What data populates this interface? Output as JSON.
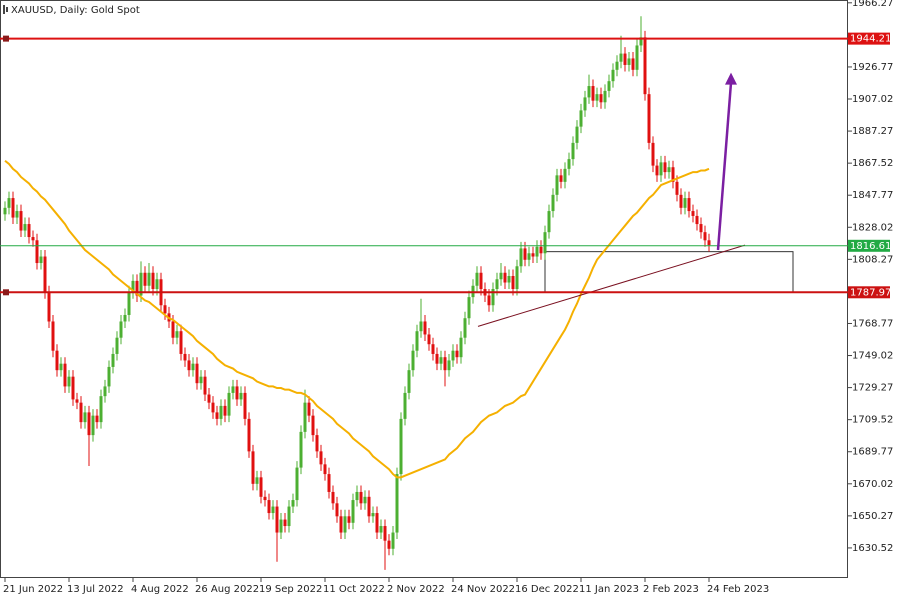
{
  "chart_data": {
    "type": "candlestick",
    "title": "XAUUSD, Daily:  Gold Spot",
    "categories": [
      "21 Jun 2022",
      null,
      null,
      null,
      null,
      null,
      null,
      null,
      null,
      null,
      null,
      null,
      null,
      null,
      null,
      null,
      "13 Jul 2022",
      null,
      null,
      null,
      null,
      null,
      null,
      null,
      null,
      null,
      null,
      null,
      null,
      null,
      null,
      null,
      "4 Aug 2022",
      null,
      null,
      null,
      null,
      null,
      null,
      null,
      null,
      null,
      null,
      null,
      null,
      null,
      null,
      null,
      "26 Aug 2022",
      null,
      null,
      null,
      null,
      null,
      null,
      null,
      null,
      null,
      null,
      null,
      null,
      null,
      null,
      null,
      "19 Sep 2022",
      null,
      null,
      null,
      null,
      null,
      null,
      null,
      null,
      null,
      null,
      null,
      null,
      null,
      null,
      null,
      "11 Oct 2022",
      null,
      null,
      null,
      null,
      null,
      null,
      null,
      null,
      null,
      null,
      null,
      null,
      null,
      null,
      null,
      "2 Nov 2022",
      null,
      null,
      null,
      null,
      null,
      null,
      null,
      null,
      null,
      null,
      null,
      null,
      null,
      null,
      null,
      "24 Nov 2022",
      null,
      null,
      null,
      null,
      null,
      null,
      null,
      null,
      null,
      null,
      null,
      null,
      null,
      null,
      null,
      "16 Dec 2022",
      null,
      null,
      null,
      null,
      null,
      null,
      null,
      null,
      null,
      null,
      null,
      null,
      null,
      null,
      null,
      "11 Jan 2023",
      null,
      null,
      null,
      null,
      null,
      null,
      null,
      null,
      null,
      null,
      null,
      null,
      null,
      null,
      null,
      "2 Feb 2023",
      null,
      null,
      null,
      null,
      null,
      null,
      null,
      null,
      null,
      null,
      null,
      null,
      null,
      null,
      null,
      "24 Feb 2023"
    ],
    "ohlc": [
      [
        1836,
        1844,
        1832,
        1840
      ],
      [
        1840,
        1850,
        1836,
        1846
      ],
      [
        1846,
        1850,
        1830,
        1834
      ],
      [
        1834,
        1842,
        1830,
        1838
      ],
      [
        1838,
        1842,
        1822,
        1826
      ],
      [
        1826,
        1834,
        1822,
        1830
      ],
      [
        1830,
        1834,
        1818,
        1822
      ],
      [
        1822,
        1826,
        1816,
        1820
      ],
      [
        1820,
        1824,
        1802,
        1806
      ],
      [
        1806,
        1814,
        1802,
        1810
      ],
      [
        1810,
        1814,
        1784,
        1788
      ],
      [
        1788,
        1792,
        1766,
        1770
      ],
      [
        1770,
        1774,
        1748,
        1752
      ],
      [
        1752,
        1756,
        1736,
        1740
      ],
      [
        1740,
        1748,
        1736,
        1744
      ],
      [
        1744,
        1748,
        1726,
        1730
      ],
      [
        1730,
        1740,
        1726,
        1736
      ],
      [
        1736,
        1740,
        1718,
        1722
      ],
      [
        1722,
        1726,
        1716,
        1720
      ],
      [
        1720,
        1724,
        1704,
        1708
      ],
      [
        1708,
        1718,
        1704,
        1714
      ],
      [
        1714,
        1718,
        1681,
        1700
      ],
      [
        1700,
        1716,
        1696,
        1712
      ],
      [
        1712,
        1716,
        1704,
        1708
      ],
      [
        1708,
        1728,
        1704,
        1724
      ],
      [
        1724,
        1734,
        1720,
        1730
      ],
      [
        1730,
        1746,
        1726,
        1742
      ],
      [
        1742,
        1754,
        1738,
        1750
      ],
      [
        1750,
        1764,
        1746,
        1760
      ],
      [
        1760,
        1774,
        1756,
        1770
      ],
      [
        1770,
        1778,
        1766,
        1774
      ],
      [
        1774,
        1792,
        1770,
        1788
      ],
      [
        1788,
        1799,
        1784,
        1795
      ],
      [
        1795,
        1799,
        1782,
        1786
      ],
      [
        1786,
        1807,
        1782,
        1800
      ],
      [
        1800,
        1804,
        1788,
        1792
      ],
      [
        1792,
        1806,
        1788,
        1800
      ],
      [
        1800,
        1804,
        1786,
        1790
      ],
      [
        1790,
        1800,
        1786,
        1796
      ],
      [
        1796,
        1800,
        1776,
        1780
      ],
      [
        1780,
        1784,
        1771,
        1775
      ],
      [
        1775,
        1779,
        1766,
        1770
      ],
      [
        1770,
        1774,
        1756,
        1760
      ],
      [
        1760,
        1768,
        1756,
        1764
      ],
      [
        1764,
        1768,
        1746,
        1750
      ],
      [
        1750,
        1754,
        1742,
        1746
      ],
      [
        1746,
        1750,
        1736,
        1740
      ],
      [
        1740,
        1748,
        1736,
        1744
      ],
      [
        1744,
        1748,
        1728,
        1732
      ],
      [
        1732,
        1740,
        1728,
        1736
      ],
      [
        1736,
        1740,
        1721,
        1725
      ],
      [
        1725,
        1729,
        1716,
        1720
      ],
      [
        1720,
        1724,
        1710,
        1714
      ],
      [
        1714,
        1718,
        1706,
        1710
      ],
      [
        1710,
        1722,
        1706,
        1718
      ],
      [
        1718,
        1722,
        1708,
        1712
      ],
      [
        1712,
        1730,
        1708,
        1726
      ],
      [
        1726,
        1734,
        1722,
        1730
      ],
      [
        1730,
        1734,
        1718,
        1722
      ],
      [
        1722,
        1730,
        1718,
        1726
      ],
      [
        1726,
        1730,
        1706,
        1710
      ],
      [
        1710,
        1714,
        1686,
        1690
      ],
      [
        1690,
        1694,
        1666,
        1670
      ],
      [
        1670,
        1678,
        1666,
        1674
      ],
      [
        1674,
        1678,
        1658,
        1662
      ],
      [
        1662,
        1666,
        1656,
        1660
      ],
      [
        1660,
        1664,
        1648,
        1652
      ],
      [
        1652,
        1660,
        1648,
        1656
      ],
      [
        1656,
        1660,
        1622,
        1640
      ],
      [
        1640,
        1652,
        1636,
        1648
      ],
      [
        1648,
        1652,
        1640,
        1644
      ],
      [
        1644,
        1660,
        1640,
        1656
      ],
      [
        1656,
        1664,
        1652,
        1660
      ],
      [
        1660,
        1684,
        1656,
        1680
      ],
      [
        1680,
        1706,
        1676,
        1702
      ],
      [
        1702,
        1728,
        1698,
        1720
      ],
      [
        1720,
        1724,
        1708,
        1712
      ],
      [
        1712,
        1716,
        1696,
        1700
      ],
      [
        1700,
        1704,
        1686,
        1690
      ],
      [
        1690,
        1694,
        1678,
        1682
      ],
      [
        1682,
        1686,
        1672,
        1676
      ],
      [
        1676,
        1680,
        1661,
        1665
      ],
      [
        1665,
        1669,
        1654,
        1658
      ],
      [
        1658,
        1662,
        1646,
        1650
      ],
      [
        1650,
        1654,
        1636,
        1640
      ],
      [
        1640,
        1654,
        1636,
        1650
      ],
      [
        1650,
        1654,
        1642,
        1646
      ],
      [
        1646,
        1664,
        1642,
        1660
      ],
      [
        1660,
        1669,
        1656,
        1665
      ],
      [
        1665,
        1669,
        1654,
        1658
      ],
      [
        1658,
        1666,
        1654,
        1662
      ],
      [
        1662,
        1666,
        1646,
        1650
      ],
      [
        1650,
        1656,
        1646,
        1652
      ],
      [
        1652,
        1656,
        1636,
        1640
      ],
      [
        1640,
        1648,
        1636,
        1644
      ],
      [
        1644,
        1648,
        1617,
        1635
      ],
      [
        1635,
        1639,
        1626,
        1630
      ],
      [
        1630,
        1644,
        1626,
        1640
      ],
      [
        1640,
        1680,
        1636,
        1676
      ],
      [
        1676,
        1714,
        1672,
        1710
      ],
      [
        1710,
        1730,
        1706,
        1726
      ],
      [
        1726,
        1744,
        1722,
        1740
      ],
      [
        1740,
        1756,
        1736,
        1752
      ],
      [
        1752,
        1768,
        1748,
        1764
      ],
      [
        1764,
        1784,
        1760,
        1770
      ],
      [
        1770,
        1774,
        1758,
        1762
      ],
      [
        1762,
        1766,
        1752,
        1756
      ],
      [
        1756,
        1760,
        1746,
        1750
      ],
      [
        1750,
        1754,
        1740,
        1744
      ],
      [
        1744,
        1752,
        1740,
        1748
      ],
      [
        1748,
        1752,
        1730,
        1740
      ],
      [
        1740,
        1750,
        1736,
        1746
      ],
      [
        1746,
        1756,
        1742,
        1752
      ],
      [
        1752,
        1756,
        1744,
        1748
      ],
      [
        1748,
        1764,
        1744,
        1760
      ],
      [
        1760,
        1776,
        1756,
        1772
      ],
      [
        1772,
        1789,
        1768,
        1785
      ],
      [
        1785,
        1796,
        1781,
        1792
      ],
      [
        1792,
        1804,
        1788,
        1800
      ],
      [
        1800,
        1804,
        1786,
        1790
      ],
      [
        1790,
        1794,
        1782,
        1786
      ],
      [
        1786,
        1790,
        1776,
        1780
      ],
      [
        1780,
        1794,
        1776,
        1790
      ],
      [
        1790,
        1800,
        1786,
        1796
      ],
      [
        1796,
        1806,
        1792,
        1800
      ],
      [
        1800,
        1804,
        1790,
        1794
      ],
      [
        1794,
        1802,
        1790,
        1798
      ],
      [
        1798,
        1802,
        1786,
        1790
      ],
      [
        1790,
        1808,
        1786,
        1804
      ],
      [
        1804,
        1819,
        1800,
        1815
      ],
      [
        1815,
        1819,
        1804,
        1808
      ],
      [
        1808,
        1816,
        1804,
        1812
      ],
      [
        1812,
        1816,
        1806,
        1810
      ],
      [
        1810,
        1820,
        1806,
        1816
      ],
      [
        1816,
        1820,
        1808,
        1812
      ],
      [
        1812,
        1829,
        1808,
        1825
      ],
      [
        1825,
        1842,
        1821,
        1838
      ],
      [
        1838,
        1852,
        1834,
        1848
      ],
      [
        1848,
        1864,
        1844,
        1860
      ],
      [
        1860,
        1864,
        1852,
        1856
      ],
      [
        1856,
        1868,
        1852,
        1864
      ],
      [
        1864,
        1874,
        1860,
        1870
      ],
      [
        1870,
        1884,
        1866,
        1880
      ],
      [
        1880,
        1894,
        1876,
        1890
      ],
      [
        1890,
        1904,
        1886,
        1900
      ],
      [
        1900,
        1912,
        1896,
        1908
      ],
      [
        1908,
        1922,
        1904,
        1915
      ],
      [
        1915,
        1919,
        1902,
        1906
      ],
      [
        1906,
        1914,
        1902,
        1910
      ],
      [
        1910,
        1914,
        1901,
        1905
      ],
      [
        1905,
        1916,
        1901,
        1912
      ],
      [
        1912,
        1922,
        1908,
        1918
      ],
      [
        1918,
        1929,
        1914,
        1925
      ],
      [
        1925,
        1934,
        1921,
        1930
      ],
      [
        1930,
        1946,
        1926,
        1935
      ],
      [
        1935,
        1939,
        1924,
        1928
      ],
      [
        1928,
        1936,
        1924,
        1932
      ],
      [
        1932,
        1936,
        1921,
        1925
      ],
      [
        1925,
        1944,
        1921,
        1940
      ],
      [
        1940,
        1958,
        1936,
        1945
      ],
      [
        1945,
        1949,
        1906,
        1910
      ],
      [
        1910,
        1914,
        1876,
        1880
      ],
      [
        1880,
        1884,
        1862,
        1866
      ],
      [
        1866,
        1870,
        1856,
        1860
      ],
      [
        1860,
        1872,
        1856,
        1868
      ],
      [
        1868,
        1872,
        1858,
        1862
      ],
      [
        1862,
        1869,
        1858,
        1865
      ],
      [
        1865,
        1869,
        1852,
        1856
      ],
      [
        1856,
        1860,
        1844,
        1848
      ],
      [
        1848,
        1852,
        1836,
        1840
      ],
      [
        1840,
        1850,
        1836,
        1846
      ],
      [
        1846,
        1850,
        1834,
        1838
      ],
      [
        1838,
        1842,
        1831,
        1835
      ],
      [
        1835,
        1839,
        1826,
        1830
      ],
      [
        1830,
        1834,
        1821,
        1825
      ],
      [
        1825,
        1829,
        1816,
        1820
      ],
      [
        1820,
        1824,
        1813,
        1817
      ]
    ],
    "up_color": "#4caf32",
    "down_color": "#e01010",
    "ma": {
      "color": "#f5b000",
      "values": [
        1869,
        1867,
        1864,
        1862,
        1859,
        1857,
        1855,
        1852,
        1850,
        1847,
        1845,
        1842,
        1839,
        1836,
        1833,
        1830,
        1826,
        1823,
        1820,
        1817,
        1814,
        1812,
        1810,
        1808,
        1806,
        1804,
        1802,
        1799,
        1797,
        1795,
        1793,
        1791,
        1789,
        1787,
        1785,
        1783,
        1782,
        1780,
        1778,
        1776,
        1774,
        1772,
        1771,
        1769,
        1767,
        1765,
        1763,
        1761,
        1758,
        1756,
        1754,
        1752,
        1750,
        1747,
        1745,
        1743,
        1742,
        1741,
        1739,
        1738,
        1737,
        1736,
        1735,
        1733,
        1732,
        1731,
        1730,
        1730,
        1729,
        1729,
        1728,
        1728,
        1727,
        1726,
        1726,
        1725,
        1723,
        1721,
        1718,
        1716,
        1714,
        1712,
        1710,
        1707,
        1705,
        1703,
        1701,
        1698,
        1696,
        1694,
        1692,
        1690,
        1687,
        1685,
        1683,
        1681,
        1679,
        1676,
        1674,
        1674,
        1675,
        1676,
        1677,
        1678,
        1679,
        1680,
        1681,
        1682,
        1683,
        1684,
        1685,
        1688,
        1690,
        1692,
        1695,
        1698,
        1700,
        1702,
        1705,
        1708,
        1710,
        1712,
        1713,
        1714,
        1716,
        1718,
        1719,
        1720,
        1722,
        1724,
        1725,
        1729,
        1733,
        1737,
        1741,
        1745,
        1749,
        1753,
        1757,
        1761,
        1765,
        1770,
        1776,
        1781,
        1787,
        1792,
        1797,
        1803,
        1808,
        1811,
        1814,
        1817,
        1820,
        1823,
        1826,
        1829,
        1832,
        1835,
        1837,
        1840,
        1843,
        1846,
        1848,
        1851,
        1854,
        1855,
        1856,
        1857,
        1858,
        1859,
        1860,
        1861,
        1862,
        1862,
        1863,
        1863,
        1864
      ]
    },
    "levels": [
      {
        "value": 1944.21,
        "color": "#dd1111"
      },
      {
        "value": 1816.61,
        "color": "#22aa44"
      },
      {
        "value": 1787.97,
        "color": "#cc1111"
      }
    ],
    "zone": {
      "top": 1813,
      "bottom": 1788
    },
    "trendline": {
      "start": 1767,
      "end": 1817,
      "color": "#7a1020"
    },
    "arrow": {
      "start": 1814,
      "end": 1922,
      "color": "#7b1fa2"
    },
    "ylim": [
      1612,
      1968
    ],
    "yticks": [
      1966.27,
      1926.77,
      1907.02,
      1887.27,
      1867.52,
      1847.77,
      1828.02,
      1808.27,
      1768.77,
      1749.02,
      1729.27,
      1709.52,
      1689.77,
      1670.02,
      1650.27,
      1630.52
    ]
  }
}
